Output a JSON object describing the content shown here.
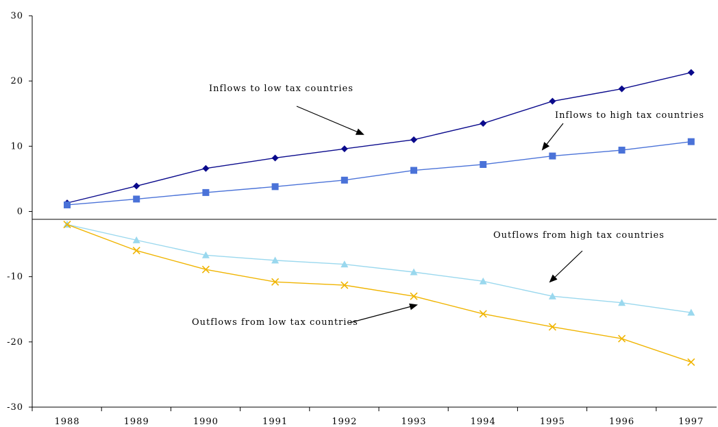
{
  "chart_data": {
    "type": "line",
    "x": [
      1988,
      1989,
      1990,
      1991,
      1992,
      1993,
      1994,
      1995,
      1996,
      1997
    ],
    "x_tick_labels": [
      "1988",
      "1989",
      "1990",
      "1991",
      "1992",
      "1993",
      "1994",
      "1995",
      "1996",
      "1997"
    ],
    "ylim": [
      -30,
      30
    ],
    "y_ticks": [
      30,
      20,
      10,
      0,
      -10,
      -20,
      -30
    ],
    "y_tick_labels": [
      "30",
      "20",
      "10",
      "0",
      "-10",
      "-20",
      "-30"
    ],
    "grid": false,
    "legend": "none (series labelled by arrow annotations)",
    "series": [
      {
        "name": "Inflows to low tax countries",
        "color": "#0a0a8c",
        "marker": "diamond",
        "values": [
          1.3,
          3.9,
          6.6,
          8.2,
          9.6,
          11.0,
          13.5,
          16.9,
          18.8,
          21.3
        ]
      },
      {
        "name": "Inflows to high tax countries",
        "color": "#4a72d8",
        "marker": "square",
        "values": [
          1.0,
          1.9,
          2.9,
          3.8,
          4.8,
          6.3,
          7.2,
          8.5,
          9.4,
          10.7
        ]
      },
      {
        "name": "Outflows from high tax countries",
        "color": "#9ad8ee",
        "marker": "triangle",
        "values": [
          -2.0,
          -4.4,
          -6.7,
          -7.5,
          -8.1,
          -9.3,
          -10.7,
          -13.0,
          -14.0,
          -15.5
        ]
      },
      {
        "name": "Outflows from low tax countries",
        "color": "#f0b400",
        "marker": "x",
        "values": [
          -2.0,
          -6.0,
          -8.9,
          -10.8,
          -11.3,
          -13.0,
          -15.7,
          -17.7,
          -19.5,
          -23.1
        ]
      }
    ],
    "annotations": [
      "Inflows to low tax countries",
      "Inflows to high tax countries",
      "Outflows from high tax countries",
      "Outflows from low tax countries"
    ]
  }
}
